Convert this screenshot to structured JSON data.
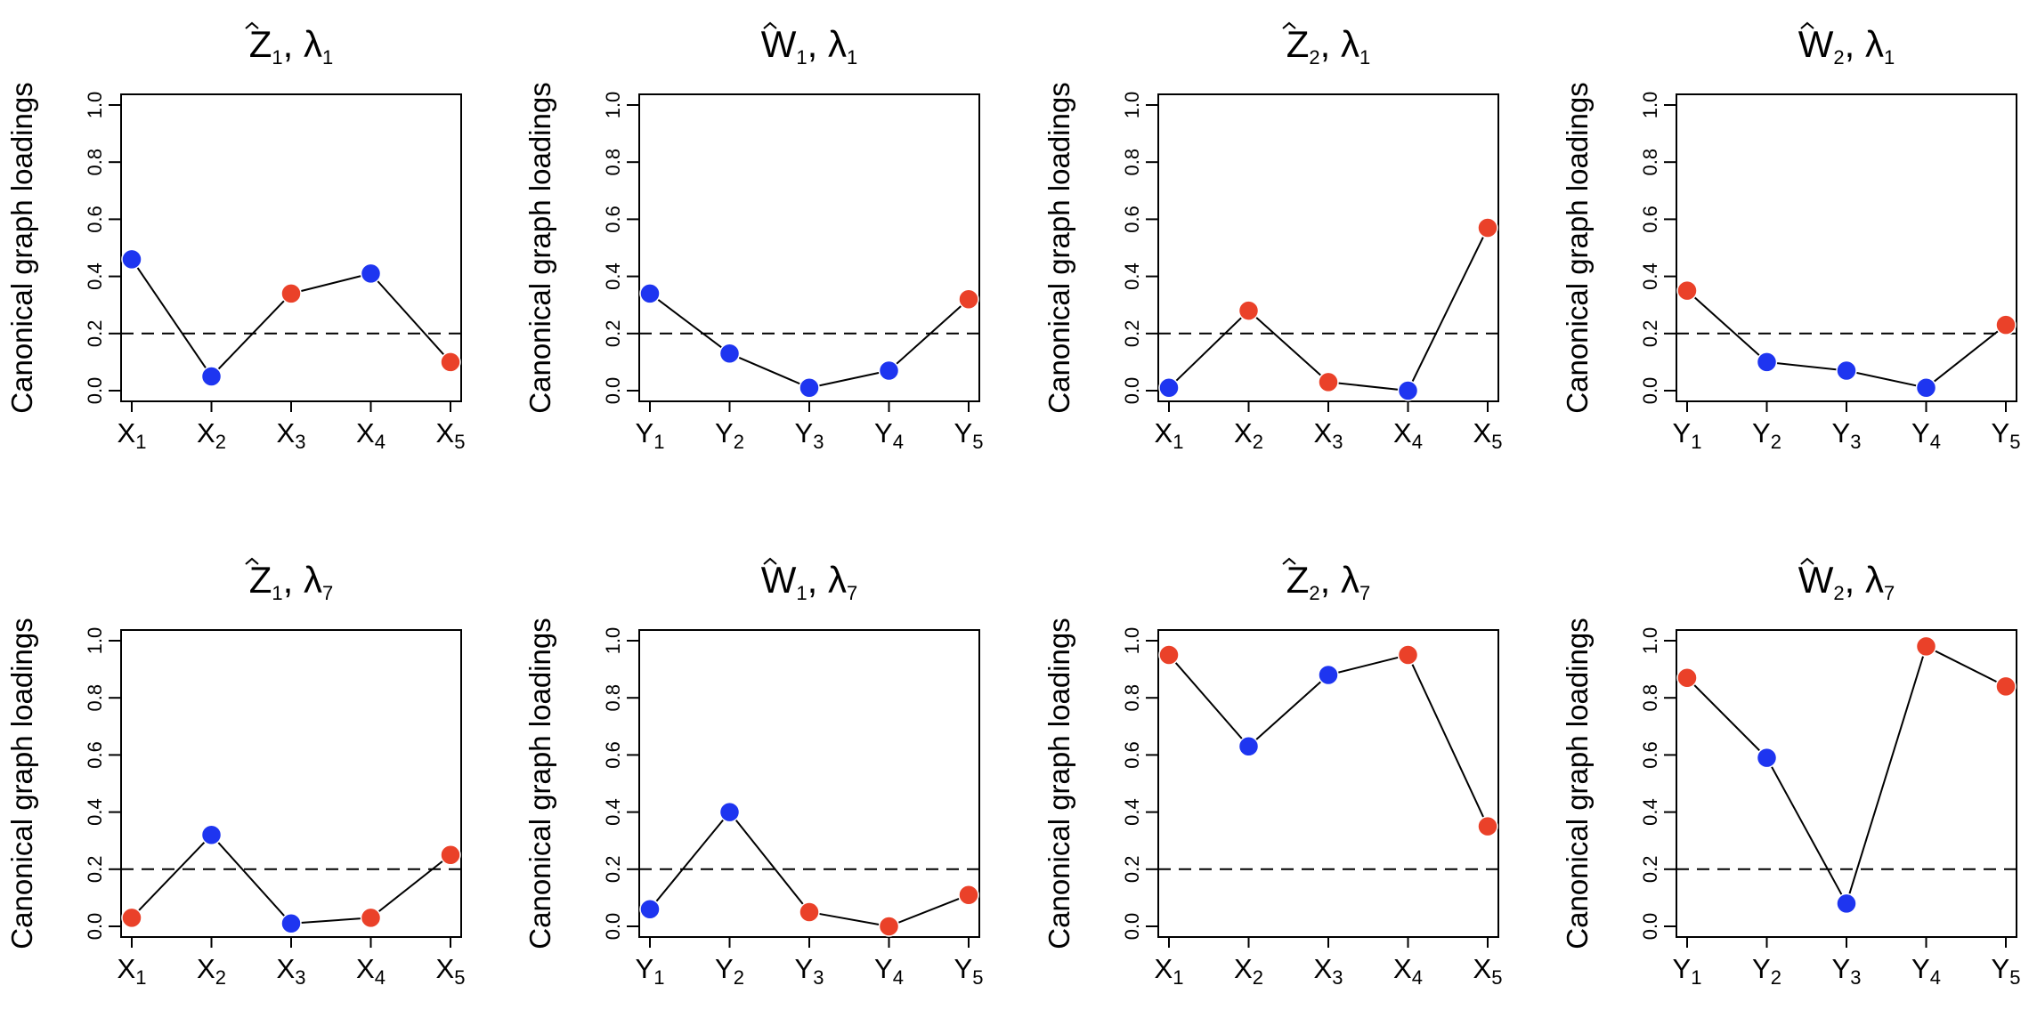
{
  "figure": {
    "ylabel": "Canonical graph loadings",
    "threshold": 0.2,
    "colors": {
      "above_threshold": "#ea4129",
      "below_threshold": "#1e35f0",
      "line": "#000000"
    }
  },
  "chart_data": [
    {
      "type": "line",
      "title_var": "Z",
      "title_var_index": "1",
      "title_lambda_index": "1",
      "ylabel": "Canonical graph loadings",
      "ylim": [
        0,
        1
      ],
      "y_ticks": [
        "0.0",
        "0.2",
        "0.4",
        "0.6",
        "0.8",
        "1.0"
      ],
      "categories": [
        {
          "letter": "X",
          "index": "1"
        },
        {
          "letter": "X",
          "index": "2"
        },
        {
          "letter": "X",
          "index": "3"
        },
        {
          "letter": "X",
          "index": "4"
        },
        {
          "letter": "X",
          "index": "5"
        }
      ],
      "values": [
        0.46,
        0.05,
        0.34,
        0.41,
        0.1
      ],
      "point_colors": [
        "blue",
        "blue",
        "red",
        "blue",
        "red"
      ],
      "threshold": 0.2
    },
    {
      "type": "line",
      "title_var": "W",
      "title_var_index": "1",
      "title_lambda_index": "1",
      "ylabel": "Canonical graph loadings",
      "ylim": [
        0,
        1
      ],
      "y_ticks": [
        "0.0",
        "0.2",
        "0.4",
        "0.6",
        "0.8",
        "1.0"
      ],
      "categories": [
        {
          "letter": "Y",
          "index": "1"
        },
        {
          "letter": "Y",
          "index": "2"
        },
        {
          "letter": "Y",
          "index": "3"
        },
        {
          "letter": "Y",
          "index": "4"
        },
        {
          "letter": "Y",
          "index": "5"
        }
      ],
      "values": [
        0.34,
        0.13,
        0.01,
        0.07,
        0.32
      ],
      "point_colors": [
        "blue",
        "blue",
        "blue",
        "blue",
        "red"
      ],
      "threshold": 0.2
    },
    {
      "type": "line",
      "title_var": "Z",
      "title_var_index": "2",
      "title_lambda_index": "1",
      "ylabel": "Canonical graph loadings",
      "ylim": [
        0,
        1
      ],
      "y_ticks": [
        "0.0",
        "0.2",
        "0.4",
        "0.6",
        "0.8",
        "1.0"
      ],
      "categories": [
        {
          "letter": "X",
          "index": "1"
        },
        {
          "letter": "X",
          "index": "2"
        },
        {
          "letter": "X",
          "index": "3"
        },
        {
          "letter": "X",
          "index": "4"
        },
        {
          "letter": "X",
          "index": "5"
        }
      ],
      "values": [
        0.01,
        0.28,
        0.03,
        0.0,
        0.57
      ],
      "point_colors": [
        "blue",
        "red",
        "red",
        "blue",
        "red"
      ],
      "threshold": 0.2
    },
    {
      "type": "line",
      "title_var": "W",
      "title_var_index": "2",
      "title_lambda_index": "1",
      "ylabel": "Canonical graph loadings",
      "ylim": [
        0,
        1
      ],
      "y_ticks": [
        "0.0",
        "0.2",
        "0.4",
        "0.6",
        "0.8",
        "1.0"
      ],
      "categories": [
        {
          "letter": "Y",
          "index": "1"
        },
        {
          "letter": "Y",
          "index": "2"
        },
        {
          "letter": "Y",
          "index": "3"
        },
        {
          "letter": "Y",
          "index": "4"
        },
        {
          "letter": "Y",
          "index": "5"
        }
      ],
      "values": [
        0.35,
        0.1,
        0.07,
        0.01,
        0.23
      ],
      "point_colors": [
        "red",
        "blue",
        "blue",
        "blue",
        "red"
      ],
      "threshold": 0.2
    },
    {
      "type": "line",
      "title_var": "Z",
      "title_var_index": "1",
      "title_lambda_index": "7",
      "ylabel": "Canonical graph loadings",
      "ylim": [
        0,
        1
      ],
      "y_ticks": [
        "0.0",
        "0.2",
        "0.4",
        "0.6",
        "0.8",
        "1.0"
      ],
      "categories": [
        {
          "letter": "X",
          "index": "1"
        },
        {
          "letter": "X",
          "index": "2"
        },
        {
          "letter": "X",
          "index": "3"
        },
        {
          "letter": "X",
          "index": "4"
        },
        {
          "letter": "X",
          "index": "5"
        }
      ],
      "values": [
        0.03,
        0.32,
        0.01,
        0.03,
        0.25
      ],
      "point_colors": [
        "red",
        "blue",
        "blue",
        "red",
        "red"
      ],
      "threshold": 0.2
    },
    {
      "type": "line",
      "title_var": "W",
      "title_var_index": "1",
      "title_lambda_index": "7",
      "ylabel": "Canonical graph loadings",
      "ylim": [
        0,
        1
      ],
      "y_ticks": [
        "0.0",
        "0.2",
        "0.4",
        "0.6",
        "0.8",
        "1.0"
      ],
      "categories": [
        {
          "letter": "Y",
          "index": "1"
        },
        {
          "letter": "Y",
          "index": "2"
        },
        {
          "letter": "Y",
          "index": "3"
        },
        {
          "letter": "Y",
          "index": "4"
        },
        {
          "letter": "Y",
          "index": "5"
        }
      ],
      "values": [
        0.06,
        0.4,
        0.05,
        0.0,
        0.11
      ],
      "point_colors": [
        "blue",
        "blue",
        "red",
        "red",
        "red"
      ],
      "threshold": 0.2
    },
    {
      "type": "line",
      "title_var": "Z",
      "title_var_index": "2",
      "title_lambda_index": "7",
      "ylabel": "Canonical graph loadings",
      "ylim": [
        0,
        1
      ],
      "y_ticks": [
        "0.0",
        "0.2",
        "0.4",
        "0.6",
        "0.8",
        "1.0"
      ],
      "categories": [
        {
          "letter": "X",
          "index": "1"
        },
        {
          "letter": "X",
          "index": "2"
        },
        {
          "letter": "X",
          "index": "3"
        },
        {
          "letter": "X",
          "index": "4"
        },
        {
          "letter": "X",
          "index": "5"
        }
      ],
      "values": [
        0.95,
        0.63,
        0.88,
        0.95,
        0.35
      ],
      "point_colors": [
        "red",
        "blue",
        "blue",
        "red",
        "red"
      ],
      "threshold": 0.2
    },
    {
      "type": "line",
      "title_var": "W",
      "title_var_index": "2",
      "title_lambda_index": "7",
      "ylabel": "Canonical graph loadings",
      "ylim": [
        0,
        1
      ],
      "y_ticks": [
        "0.0",
        "0.2",
        "0.4",
        "0.6",
        "0.8",
        "1.0"
      ],
      "categories": [
        {
          "letter": "Y",
          "index": "1"
        },
        {
          "letter": "Y",
          "index": "2"
        },
        {
          "letter": "Y",
          "index": "3"
        },
        {
          "letter": "Y",
          "index": "4"
        },
        {
          "letter": "Y",
          "index": "5"
        }
      ],
      "values": [
        0.87,
        0.59,
        0.08,
        0.98,
        0.84
      ],
      "point_colors": [
        "red",
        "blue",
        "blue",
        "red",
        "red"
      ],
      "threshold": 0.2
    }
  ]
}
